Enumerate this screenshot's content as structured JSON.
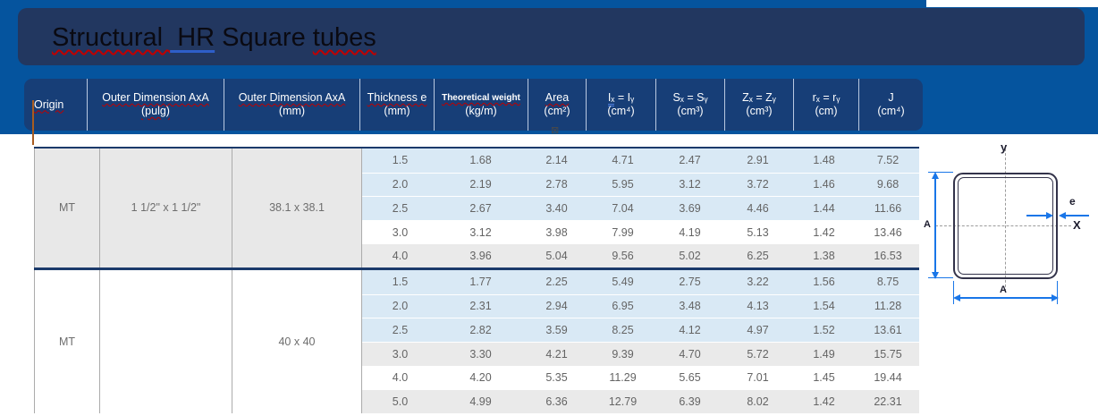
{
  "colors": {
    "banner_blue": "#05549e",
    "title_navy": "#223760",
    "header_navy": "#173e77",
    "row_blue": "#d9e9f5",
    "row_gray": "#eaeaea",
    "border_navy": "#1b3a6b",
    "spellcheck_red": "#c00000",
    "grammar_blue": "#2e5ec9",
    "dimension_blue": "#1976e8",
    "caret_orange": "#a85c20",
    "body_text_gray": "#646464"
  },
  "title": {
    "s1": "Structural ",
    "s2": " HR",
    "s3": " Square ",
    "s4": "tubes"
  },
  "header": {
    "origin": {
      "l1": "Origin"
    },
    "pulg": {
      "l1": "Outer Dimension AxA",
      "l2": "(pulg)"
    },
    "mm": {
      "l1": "Outer Dimension AxA",
      "l2": "(mm)"
    },
    "thickness": {
      "l1": "Thickness e",
      "l2": "(mm)"
    },
    "weight": {
      "l1": "Theoretical weight",
      "l2": "(kg/m)"
    },
    "area": {
      "l1": "Area",
      "l2": "(cm²)"
    },
    "ix": {
      "l1a": "Iₓ",
      "l1b": " = Iᵧ",
      "l2": "(cm⁴)"
    },
    "sx": {
      "l1": "Sₓ = Sᵧ",
      "l2": "(cm³)"
    },
    "zx": {
      "l1": "Zₓ = Zᵧ",
      "l2": "(cm³)"
    },
    "rx": {
      "l1": "rₓ = rᵧ",
      "l2": "(cm)"
    },
    "j": {
      "l1": "J",
      "l2": "(cm⁴)"
    }
  },
  "anchor_icon": "⊠",
  "table": {
    "groups": [
      {
        "origin": "MT",
        "dim_pulg": "1 1/2\" x 1 1/2\"",
        "dim_mm": "38.1 x 38.1",
        "rows": [
          {
            "bg": "blue",
            "values": [
              "1.5",
              "1.68",
              "2.14",
              "4.71",
              "2.47",
              "2.91",
              "1.48",
              "7.52"
            ]
          },
          {
            "bg": "blue",
            "values": [
              "2.0",
              "2.19",
              "2.78",
              "5.95",
              "3.12",
              "3.72",
              "1.46",
              "9.68"
            ]
          },
          {
            "bg": "blue",
            "values": [
              "2.5",
              "2.67",
              "3.40",
              "7.04",
              "3.69",
              "4.46",
              "1.44",
              "11.66"
            ]
          },
          {
            "bg": "white",
            "values": [
              "3.0",
              "3.12",
              "3.98",
              "7.99",
              "4.19",
              "5.13",
              "1.42",
              "13.46"
            ]
          },
          {
            "bg": "gray",
            "values": [
              "4.0",
              "3.96",
              "5.04",
              "9.56",
              "5.02",
              "6.25",
              "1.38",
              "16.53"
            ]
          }
        ]
      },
      {
        "origin": "MT",
        "dim_pulg": "",
        "dim_mm": "40 x 40",
        "rows": [
          {
            "bg": "blue",
            "values": [
              "1.5",
              "1.77",
              "2.25",
              "5.49",
              "2.75",
              "3.22",
              "1.56",
              "8.75"
            ]
          },
          {
            "bg": "blue",
            "values": [
              "2.0",
              "2.31",
              "2.94",
              "6.95",
              "3.48",
              "4.13",
              "1.54",
              "11.28"
            ]
          },
          {
            "bg": "blue",
            "values": [
              "2.5",
              "2.82",
              "3.59",
              "8.25",
              "4.12",
              "4.97",
              "1.52",
              "13.61"
            ]
          },
          {
            "bg": "gray",
            "values": [
              "3.0",
              "3.30",
              "4.21",
              "9.39",
              "4.70",
              "5.72",
              "1.49",
              "15.75"
            ]
          },
          {
            "bg": "white",
            "values": [
              "4.0",
              "4.20",
              "5.35",
              "11.29",
              "5.65",
              "7.01",
              "1.45",
              "19.44"
            ]
          },
          {
            "bg": "gray",
            "values": [
              "5.0",
              "4.99",
              "6.36",
              "12.79",
              "6.39",
              "8.02",
              "1.42",
              "22.31"
            ]
          }
        ]
      }
    ]
  },
  "diagram": {
    "y_label": "y",
    "x_label": "X",
    "a_left_label": "A",
    "a_bottom_label": "A",
    "e_label": "e"
  }
}
